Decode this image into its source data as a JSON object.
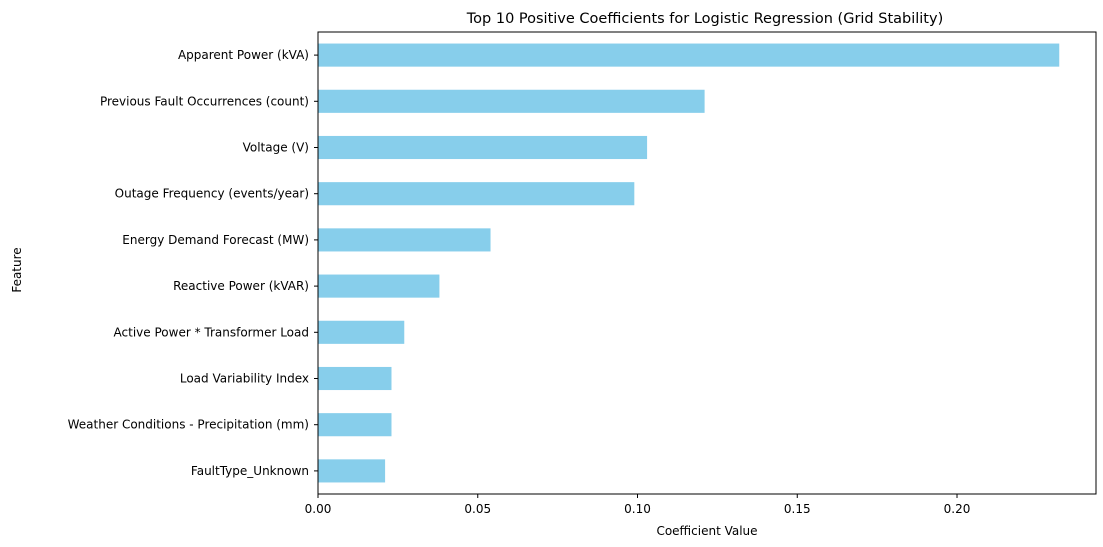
{
  "chart_data": {
    "type": "bar",
    "orientation": "horizontal",
    "title": "Top 10 Positive Coefficients for Logistic Regression (Grid Stability)",
    "xlabel": "Coefficient Value",
    "ylabel": "Feature",
    "xlim": [
      0,
      0.2435
    ],
    "xticks": [
      0.0,
      0.05,
      0.1,
      0.15,
      0.2
    ],
    "xtick_labels": [
      "0.00",
      "0.05",
      "0.10",
      "0.15",
      "0.20"
    ],
    "grid": false,
    "legend": "none",
    "bar_color": "#87ceeb",
    "categories": [
      "Apparent Power (kVA)",
      "Previous Fault Occurrences (count)",
      "Voltage (V)",
      "Outage Frequency (events/year)",
      "Energy Demand Forecast (MW)",
      "Reactive Power (kVAR)",
      "Active Power * Transformer Load",
      "Load Variability Index",
      "Weather Conditions - Precipitation (mm)",
      "FaultType_Unknown"
    ],
    "values": [
      0.232,
      0.121,
      0.103,
      0.099,
      0.054,
      0.038,
      0.027,
      0.023,
      0.023,
      0.021
    ]
  }
}
